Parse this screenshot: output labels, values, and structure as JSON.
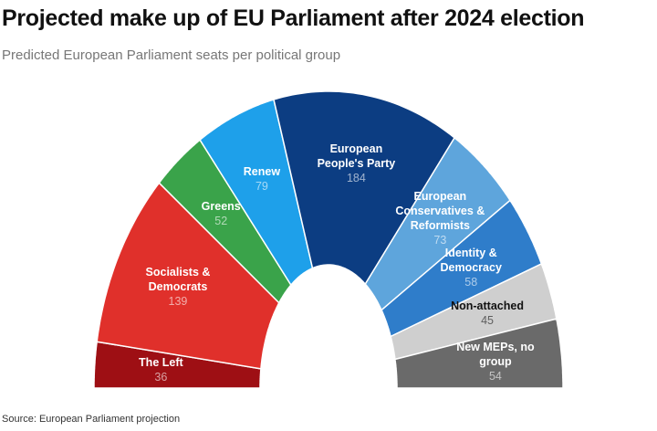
{
  "chart_data": {
    "type": "parliament",
    "title": "Projected make up of EU Parliament after 2024 election",
    "subtitle": "Predicted European Parliament seats per political group",
    "source": "Source: European Parliament projection",
    "categories": [
      "The Left",
      "Socialists & Democrats",
      "Greens",
      "Renew",
      "European People's Party",
      "European Conservatives & Reformists",
      "Identity & Democracy",
      "Non-attached",
      "New MEPs, no group"
    ],
    "values": [
      36,
      139,
      52,
      79,
      184,
      73,
      58,
      45,
      54
    ],
    "colors": [
      "#9e0f14",
      "#e0302b",
      "#3aa34a",
      "#1ea0ea",
      "#0c3d82",
      "#5ea5dc",
      "#2f7dca",
      "#cfcfcf",
      "#6a6a6a"
    ]
  }
}
